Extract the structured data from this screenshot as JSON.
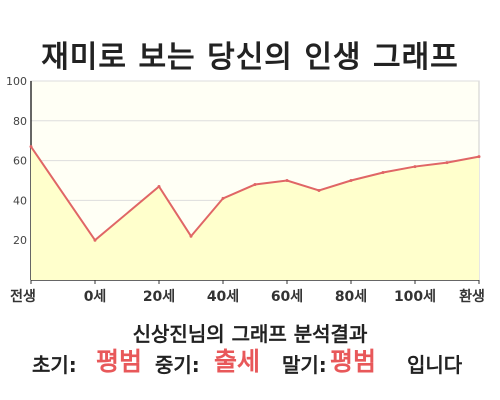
{
  "title": "재미로 보는 당신의 인생 그래프",
  "chart_data": {
    "type": "area",
    "title": "재미로 보는 당신의 인생 그래프",
    "xlabel": "",
    "ylabel": "",
    "x_tick_labels": [
      "전생",
      "0세",
      "20세",
      "40세",
      "60세",
      "80세",
      "100세",
      "환생"
    ],
    "ylim": [
      0,
      100
    ],
    "yticks": [
      20,
      40,
      60,
      80,
      100
    ],
    "grid": true,
    "legend": "none",
    "colors": {
      "line": "#e06666",
      "fill": "#ffffcc",
      "grid": "#dddddd",
      "background": "#fffff5"
    },
    "series": [
      {
        "x": [
          0,
          1,
          2,
          2.5,
          3,
          3.5,
          4,
          4.5,
          5,
          5.5,
          6,
          6.5,
          7
        ],
        "values": [
          67,
          20,
          47,
          22,
          41,
          48,
          50,
          45,
          50,
          54,
          57,
          59,
          62
        ]
      }
    ]
  },
  "result": {
    "heading": "신상진님의 그래프 분석결과",
    "early_label": "초기:",
    "early_value": "평범",
    "middle_label": "중기:",
    "middle_value": "출세",
    "late_label": "말기:",
    "late_value": "평범",
    "ending": "입니다"
  }
}
